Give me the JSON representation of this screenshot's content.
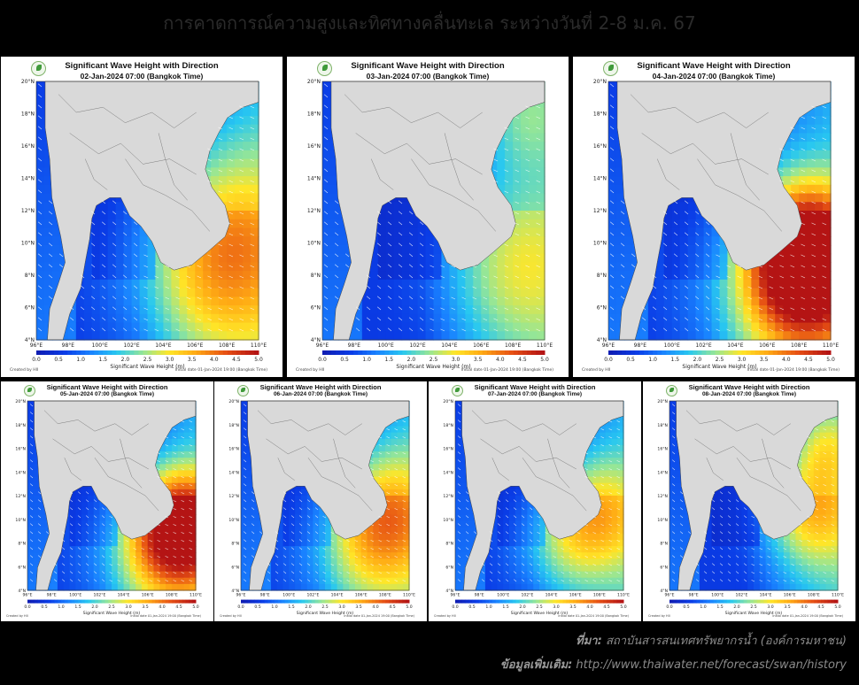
{
  "title": "การคาดการณ์ความสูงและทิศทางคลื่นทะเล ระหว่างวันที่ 2-8 ม.ค. 67",
  "map_title": "Significant Wave Height with Direction",
  "lat_labels": [
    "4°N",
    "6°N",
    "8°N",
    "10°N",
    "12°N",
    "14°N",
    "16°N",
    "18°N",
    "20°N"
  ],
  "lon_labels": [
    "96°E",
    "98°E",
    "100°E",
    "102°E",
    "104°E",
    "106°E",
    "108°E",
    "110°E"
  ],
  "colorbar_ticks": [
    "0.0",
    "0.5",
    "1.0",
    "1.5",
    "2.0",
    "2.5",
    "3.0",
    "3.5",
    "4.0",
    "4.5",
    "5.0"
  ],
  "colorbar_label": "Significant Wave Height (m)",
  "created_by": "Created by HII",
  "initial_date": "Initial date 01-Jan-2024 19:00 (Bangkok Time)",
  "maps": [
    {
      "date": "02-Jan-2024 07:00 (Bangkok Time)"
    },
    {
      "date": "03-Jan-2024 07:00 (Bangkok Time)"
    },
    {
      "date": "04-Jan-2024 07:00 (Bangkok Time)"
    },
    {
      "date": "05-Jan-2024 07:00 (Bangkok Time)"
    },
    {
      "date": "06-Jan-2024 07:00 (Bangkok Time)"
    },
    {
      "date": "07-Jan-2024 07:00 (Bangkok Time)"
    },
    {
      "date": "08-Jan-2024 07:00 (Bangkok Time)"
    }
  ],
  "source_label": "ที่มา:",
  "source_value": "สถาบันสารสนเทศทรัพยากรน้ำ (องค์การมหาชน)",
  "more_label": "ข้อมูลเพิ่มเติม:",
  "more_value": "http://www.thaiwater.net/forecast/swan/history",
  "colors": {
    "ocean_low": "#0a2fd6",
    "ocean_mid": "#1e8cff",
    "ocean_high": "#ffd21a",
    "peak": "#e8591a",
    "land": "#d9d9d9"
  }
}
